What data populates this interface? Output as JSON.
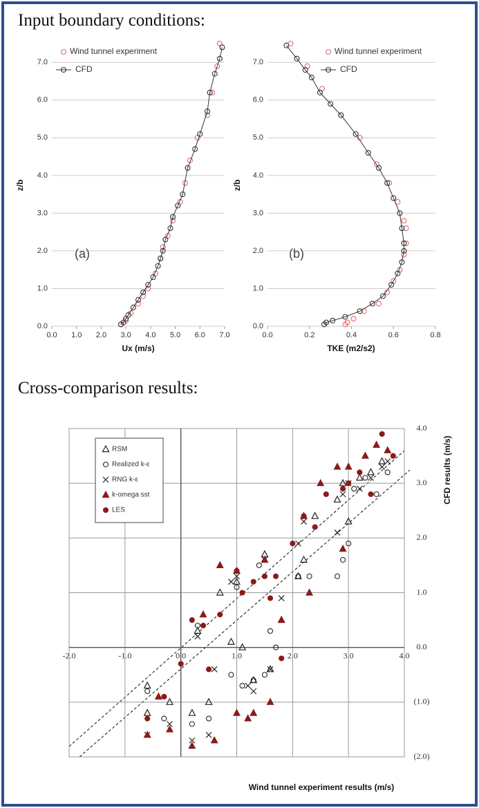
{
  "headings": [
    "Input boundary conditions:",
    "Cross-comparison results:"
  ],
  "chart_data": [
    {
      "type": "scatter",
      "x_label": "Ux (m/s)",
      "y_label": "z/b",
      "annotation": "(a)",
      "legend": "upper left",
      "grid": "y",
      "xlim": [
        0,
        7
      ],
      "ylim": [
        0,
        7.5
      ],
      "xticks": [
        {
          "value": 0,
          "label": "0.0"
        },
        {
          "value": 1,
          "label": "1.0"
        },
        {
          "value": 2,
          "label": "2.0"
        },
        {
          "value": 3,
          "label": "3.0"
        },
        {
          "value": 4,
          "label": "4.0"
        },
        {
          "value": 5,
          "label": "5.0"
        },
        {
          "value": 6,
          "label": "6.0"
        },
        {
          "value": 7,
          "label": "7.0"
        }
      ],
      "yticks": [
        {
          "value": 0,
          "label": "0.0"
        },
        {
          "value": 1,
          "label": "1.0"
        },
        {
          "value": 2,
          "label": "2.0"
        },
        {
          "value": 3,
          "label": "3.0"
        },
        {
          "value": 4,
          "label": "4.0"
        },
        {
          "value": 5,
          "label": "5.0"
        },
        {
          "value": 6,
          "label": "6.0"
        },
        {
          "value": 7,
          "label": "7.0"
        }
      ],
      "series": [
        {
          "name": "Wind tunnel experiment",
          "color": "#e06a6a",
          "marker": "circle-open",
          "x": [
            2.8,
            3.0,
            3.2,
            3.5,
            3.7,
            3.9,
            4.2,
            4.4,
            4.5,
            4.7,
            4.9,
            5.2,
            5.4,
            5.6,
            5.9,
            6.3,
            6.5,
            6.7,
            6.8
          ],
          "values": [
            0.05,
            0.15,
            0.35,
            0.6,
            0.8,
            1.0,
            1.4,
            1.8,
            2.1,
            2.4,
            2.8,
            3.3,
            3.8,
            4.4,
            5.0,
            5.6,
            6.2,
            6.9,
            7.5
          ]
        },
        {
          "name": "CFD",
          "color": "#333333",
          "marker": "circle-open",
          "line": true,
          "x": [
            2.8,
            2.9,
            3.0,
            3.1,
            3.3,
            3.5,
            3.7,
            3.9,
            4.1,
            4.3,
            4.4,
            4.5,
            4.6,
            4.8,
            4.9,
            5.1,
            5.3,
            5.5,
            5.8,
            6.0,
            6.3,
            6.4,
            6.6,
            6.8,
            6.9
          ],
          "values": [
            0.05,
            0.1,
            0.2,
            0.3,
            0.5,
            0.7,
            0.9,
            1.1,
            1.3,
            1.6,
            1.8,
            2.0,
            2.3,
            2.6,
            2.9,
            3.2,
            3.5,
            4.2,
            4.7,
            5.1,
            5.7,
            6.2,
            6.7,
            7.1,
            7.4
          ]
        }
      ]
    },
    {
      "type": "scatter",
      "x_label": "TKE (m2/s2)",
      "y_label": "z/b",
      "annotation": "(b)",
      "legend": "upper right",
      "grid": "y",
      "xlim": [
        0,
        0.8
      ],
      "ylim": [
        0,
        7.5
      ],
      "xticks": [
        {
          "value": 0,
          "label": "0.0"
        },
        0.2,
        0.4,
        0.6,
        0.8
      ],
      "yticks": [
        {
          "value": 0,
          "label": "0.0"
        },
        {
          "value": 1,
          "label": "1.0"
        },
        {
          "value": 2,
          "label": "2.0"
        },
        {
          "value": 3,
          "label": "3.0"
        },
        {
          "value": 4,
          "label": "4.0"
        },
        {
          "value": 5,
          "label": "5.0"
        },
        {
          "value": 6,
          "label": "6.0"
        },
        {
          "value": 7,
          "label": "7.0"
        }
      ],
      "series": [
        {
          "name": "Wind tunnel experiment",
          "color": "#e06a6a",
          "marker": "circle-open",
          "x": [
            0.11,
            0.19,
            0.26,
            0.35,
            0.44,
            0.52,
            0.58,
            0.62,
            0.65,
            0.66,
            0.66,
            0.65,
            0.63,
            0.6,
            0.57,
            0.53,
            0.46,
            0.41,
            0.38,
            0.37
          ],
          "values": [
            7.5,
            6.9,
            6.3,
            5.6,
            5.0,
            4.3,
            3.8,
            3.3,
            2.8,
            2.6,
            2.2,
            1.9,
            1.5,
            1.2,
            0.9,
            0.6,
            0.4,
            0.2,
            0.1,
            0.05
          ]
        },
        {
          "name": "CFD",
          "color": "#333333",
          "marker": "circle-open",
          "line": true,
          "x": [
            0.09,
            0.14,
            0.18,
            0.21,
            0.25,
            0.3,
            0.35,
            0.42,
            0.48,
            0.53,
            0.57,
            0.6,
            0.63,
            0.64,
            0.65,
            0.65,
            0.64,
            0.62,
            0.59,
            0.55,
            0.5,
            0.44,
            0.37,
            0.31,
            0.28,
            0.27
          ],
          "values": [
            7.45,
            7.1,
            6.8,
            6.6,
            6.2,
            5.9,
            5.6,
            5.1,
            4.6,
            4.2,
            3.8,
            3.4,
            3.0,
            2.6,
            2.2,
            2.0,
            1.7,
            1.4,
            1.1,
            0.8,
            0.6,
            0.4,
            0.25,
            0.15,
            0.1,
            0.05
          ]
        }
      ]
    },
    {
      "type": "scatter",
      "x_label": "Wind tunnel experiment results (m/s)",
      "y_label": "CFD results (m/s)",
      "legend": "upper left",
      "grid": "both",
      "axes_at_zero": true,
      "ytick_side": "right",
      "xlim": [
        -2,
        4
      ],
      "ylim": [
        -2,
        4
      ],
      "xticks": [
        {
          "value": -2,
          "label": "-2.0"
        },
        {
          "value": -1,
          "label": "-1.0"
        },
        {
          "value": 0,
          "label": "0.0"
        },
        {
          "value": 1,
          "label": "1.0"
        },
        {
          "value": 2,
          "label": "2.0"
        },
        {
          "value": 3,
          "label": "3.0"
        },
        {
          "value": 4,
          "label": "4.0"
        }
      ],
      "yticks": [
        {
          "value": -2,
          "label": "(2.0)"
        },
        {
          "value": -1,
          "label": "(1.0)"
        },
        {
          "value": 0,
          "label": "0.0"
        },
        {
          "value": 1,
          "label": "1.0"
        },
        {
          "value": 2,
          "label": "2.0"
        },
        {
          "value": 3,
          "label": "3.0"
        },
        {
          "value": 4,
          "label": "4.0"
        }
      ],
      "series": [
        {
          "name": "RSM",
          "color": "#222222",
          "marker": "triangle-open",
          "x": [
            -0.6,
            -0.6,
            -0.2,
            0.2,
            0.3,
            0.5,
            0.7,
            0.9,
            1.0,
            1.1,
            1.3,
            1.5,
            1.6,
            1.8,
            2.1,
            2.2,
            2.4,
            2.8,
            2.9,
            3.0,
            3.2,
            3.4,
            3.6
          ],
          "values": [
            -0.7,
            -1.2,
            -1.0,
            -1.2,
            0.3,
            -1.0,
            1.0,
            0.1,
            1.2,
            0.0,
            -0.6,
            1.7,
            -0.4,
            0.5,
            1.3,
            1.6,
            2.4,
            2.7,
            3.0,
            2.3,
            3.1,
            3.2,
            3.4
          ]
        },
        {
          "name": "Realized k-ε",
          "color": "#222222",
          "marker": "circle-open",
          "x": [
            -0.6,
            -0.3,
            0.2,
            0.3,
            0.5,
            0.9,
            1.0,
            1.1,
            1.3,
            1.4,
            1.5,
            1.6,
            1.7,
            2.1,
            2.3,
            2.8,
            2.9,
            3.0,
            3.1,
            3.3,
            3.5,
            3.7
          ],
          "values": [
            -0.8,
            -1.3,
            -1.4,
            0.4,
            -1.3,
            -0.5,
            1.1,
            -0.7,
            -0.6,
            1.5,
            -0.5,
            0.3,
            0.0,
            1.3,
            1.3,
            1.3,
            1.6,
            1.9,
            2.9,
            3.1,
            2.8,
            3.2
          ]
        },
        {
          "name": "RNG k-ε",
          "color": "#222222",
          "marker": "x",
          "x": [
            -0.6,
            -0.2,
            0.2,
            0.3,
            0.5,
            0.6,
            0.9,
            1.0,
            1.2,
            1.3,
            1.5,
            1.6,
            1.8,
            2.1,
            2.2,
            2.8,
            2.9,
            3.0,
            3.2,
            3.4,
            3.6,
            3.7
          ],
          "values": [
            -1.6,
            -1.4,
            -1.7,
            0.2,
            -1.6,
            -0.4,
            1.2,
            1.3,
            -0.7,
            -0.8,
            1.6,
            -0.4,
            0.9,
            1.9,
            2.3,
            2.1,
            2.8,
            3.0,
            2.9,
            3.1,
            3.3,
            3.4
          ]
        },
        {
          "name": "k-omega sst",
          "color": "#8b1a1a",
          "marker": "triangle",
          "x": [
            -0.6,
            -0.4,
            -0.2,
            0.2,
            0.4,
            0.6,
            0.7,
            1.0,
            1.0,
            1.2,
            1.3,
            1.5,
            1.6,
            1.8,
            2.2,
            2.3,
            2.5,
            2.8,
            2.9,
            3.0,
            3.3,
            3.5,
            3.7
          ],
          "values": [
            -1.6,
            -0.9,
            -1.5,
            -1.8,
            0.6,
            -1.7,
            1.5,
            1.4,
            -1.2,
            -1.3,
            -1.2,
            1.6,
            -1.0,
            0.5,
            2.4,
            1.0,
            3.0,
            3.3,
            1.8,
            3.3,
            3.5,
            3.7,
            3.6
          ]
        },
        {
          "name": "LES",
          "color": "#8b1a1a",
          "marker": "circle",
          "x": [
            -0.6,
            -0.3,
            0.0,
            0.2,
            0.4,
            0.5,
            0.7,
            1.0,
            1.1,
            1.3,
            1.5,
            1.6,
            1.7,
            1.8,
            2.0,
            2.2,
            2.4,
            2.6,
            2.9,
            3.0,
            3.2,
            3.4,
            3.6,
            3.8
          ],
          "values": [
            -1.3,
            -0.9,
            -0.3,
            0.5,
            0.4,
            -0.4,
            0.6,
            1.4,
            1.0,
            1.2,
            1.3,
            0.9,
            1.3,
            -0.2,
            1.9,
            2.4,
            2.2,
            2.8,
            2.9,
            3.0,
            3.2,
            2.8,
            3.9,
            3.5
          ]
        }
      ]
    }
  ]
}
